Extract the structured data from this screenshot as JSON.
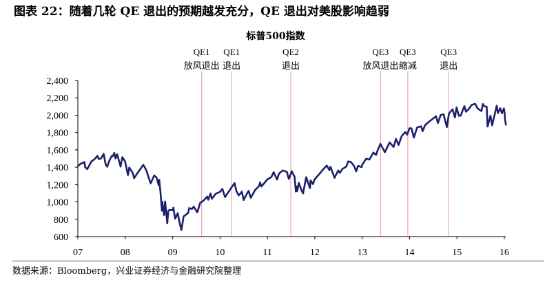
{
  "header": {
    "title": "图表 22：随着几轮 QE 退出的预期越发充分，QE 退出对美股影响趋弱"
  },
  "chart_data": {
    "type": "line",
    "title": "标普500指数",
    "xlabel": "",
    "ylabel": "",
    "xlim": [
      "2007-01-01",
      "2016-01-01"
    ],
    "ylim": [
      600,
      2400
    ],
    "x_tick_labels": [
      "07",
      "08",
      "09",
      "10",
      "11",
      "12",
      "13",
      "14",
      "15",
      "16"
    ],
    "y_ticks": [
      600,
      800,
      1000,
      1200,
      1400,
      1600,
      1800,
      2000,
      2200,
      2400
    ],
    "y_tick_labels": [
      "600",
      "800",
      "1,000",
      "1,200",
      "1,400",
      "1,600",
      "1,800",
      "2,000",
      "2,200",
      "2,400"
    ],
    "grid": false,
    "legend": "none",
    "colors": {
      "series": "#1c1f6b",
      "event_line": "#e9a6b0"
    },
    "annotations": [
      {
        "date": "2009-08-12",
        "label_top": "QE1",
        "label_bottom": "放风退出"
      },
      {
        "date": "2010-03-31",
        "label_top": "QE1",
        "label_bottom": "退出"
      },
      {
        "date": "2011-06-30",
        "label_top": "QE2",
        "label_bottom": "退出"
      },
      {
        "date": "2013-05-22",
        "label_top": "QE3",
        "label_bottom": "放风退出"
      },
      {
        "date": "2013-12-18",
        "label_top": "QE3",
        "label_bottom": "缩减"
      },
      {
        "date": "2014-10-29",
        "label_top": "QE3",
        "label_bottom": "退出"
      }
    ],
    "series": [
      {
        "points": [
          [
            "2007-01-03",
            1417
          ],
          [
            "2007-01-24",
            1440
          ],
          [
            "2007-02-20",
            1459
          ],
          [
            "2007-02-27",
            1400
          ],
          [
            "2007-03-14",
            1377
          ],
          [
            "2007-03-30",
            1421
          ],
          [
            "2007-04-16",
            1468
          ],
          [
            "2007-04-30",
            1482
          ],
          [
            "2007-05-15",
            1501
          ],
          [
            "2007-05-31",
            1531
          ],
          [
            "2007-06-12",
            1493
          ],
          [
            "2007-06-29",
            1503
          ],
          [
            "2007-07-19",
            1553
          ],
          [
            "2007-08-03",
            1433
          ],
          [
            "2007-08-15",
            1406
          ],
          [
            "2007-08-31",
            1474
          ],
          [
            "2007-09-19",
            1529
          ],
          [
            "2007-09-28",
            1527
          ],
          [
            "2007-10-09",
            1565
          ],
          [
            "2007-10-19",
            1501
          ],
          [
            "2007-10-31",
            1549
          ],
          [
            "2007-11-26",
            1407
          ],
          [
            "2007-12-10",
            1516
          ],
          [
            "2007-12-31",
            1468
          ],
          [
            "2008-01-22",
            1310
          ],
          [
            "2008-02-01",
            1396
          ],
          [
            "2008-02-29",
            1331
          ],
          [
            "2008-03-10",
            1273
          ],
          [
            "2008-03-31",
            1323
          ],
          [
            "2008-04-30",
            1386
          ],
          [
            "2008-05-19",
            1427
          ],
          [
            "2008-05-30",
            1400
          ],
          [
            "2008-06-13",
            1360
          ],
          [
            "2008-06-30",
            1280
          ],
          [
            "2008-07-15",
            1214
          ],
          [
            "2008-07-31",
            1267
          ],
          [
            "2008-08-11",
            1305
          ],
          [
            "2008-08-29",
            1283
          ],
          [
            "2008-09-15",
            1193
          ],
          [
            "2008-09-19",
            1255
          ],
          [
            "2008-09-29",
            1106
          ],
          [
            "2008-10-10",
            899
          ],
          [
            "2008-10-13",
            1003
          ],
          [
            "2008-10-27",
            848
          ],
          [
            "2008-11-04",
            1005
          ],
          [
            "2008-11-20",
            752
          ],
          [
            "2008-11-28",
            896
          ],
          [
            "2008-12-08",
            909
          ],
          [
            "2008-12-31",
            903
          ],
          [
            "2009-01-06",
            935
          ],
          [
            "2009-01-20",
            805
          ],
          [
            "2009-02-09",
            870
          ],
          [
            "2009-02-27",
            735
          ],
          [
            "2009-03-09",
            676
          ],
          [
            "2009-03-26",
            832
          ],
          [
            "2009-04-30",
            873
          ],
          [
            "2009-05-08",
            929
          ],
          [
            "2009-05-29",
            919
          ],
          [
            "2009-06-12",
            946
          ],
          [
            "2009-07-10",
            879
          ],
          [
            "2009-07-31",
            987
          ],
          [
            "2009-08-31",
            1021
          ],
          [
            "2009-09-23",
            1061
          ],
          [
            "2009-10-02",
            1025
          ],
          [
            "2009-10-19",
            1097
          ],
          [
            "2009-10-30",
            1036
          ],
          [
            "2009-11-30",
            1096
          ],
          [
            "2009-12-31",
            1115
          ],
          [
            "2010-01-19",
            1150
          ],
          [
            "2010-02-08",
            1056
          ],
          [
            "2010-03-31",
            1169
          ],
          [
            "2010-04-23",
            1217
          ],
          [
            "2010-05-06",
            1128
          ],
          [
            "2010-05-25",
            1074
          ],
          [
            "2010-06-18",
            1117
          ],
          [
            "2010-07-02",
            1022
          ],
          [
            "2010-07-30",
            1102
          ],
          [
            "2010-08-09",
            1127
          ],
          [
            "2010-08-26",
            1047
          ],
          [
            "2010-09-30",
            1141
          ],
          [
            "2010-10-29",
            1183
          ],
          [
            "2010-11-05",
            1225
          ],
          [
            "2010-11-16",
            1178
          ],
          [
            "2010-12-31",
            1258
          ],
          [
            "2011-01-31",
            1286
          ],
          [
            "2011-02-18",
            1343
          ],
          [
            "2011-03-16",
            1257
          ],
          [
            "2011-03-31",
            1326
          ],
          [
            "2011-04-29",
            1364
          ],
          [
            "2011-05-31",
            1345
          ],
          [
            "2011-06-15",
            1265
          ],
          [
            "2011-06-30",
            1321
          ],
          [
            "2011-07-07",
            1354
          ],
          [
            "2011-07-29",
            1292
          ],
          [
            "2011-08-08",
            1119
          ],
          [
            "2011-08-12",
            1179
          ],
          [
            "2011-08-19",
            1124
          ],
          [
            "2011-08-31",
            1219
          ],
          [
            "2011-09-22",
            1130
          ],
          [
            "2011-10-03",
            1099
          ],
          [
            "2011-10-27",
            1285
          ],
          [
            "2011-11-25",
            1159
          ],
          [
            "2011-11-30",
            1247
          ],
          [
            "2011-12-19",
            1206
          ],
          [
            "2011-12-30",
            1258
          ],
          [
            "2012-01-31",
            1312
          ],
          [
            "2012-02-29",
            1366
          ],
          [
            "2012-04-02",
            1419
          ],
          [
            "2012-04-23",
            1366
          ],
          [
            "2012-05-01",
            1406
          ],
          [
            "2012-06-01",
            1278
          ],
          [
            "2012-06-29",
            1362
          ],
          [
            "2012-07-12",
            1334
          ],
          [
            "2012-07-31",
            1379
          ],
          [
            "2012-08-31",
            1407
          ],
          [
            "2012-09-14",
            1466
          ],
          [
            "2012-10-05",
            1461
          ],
          [
            "2012-10-31",
            1412
          ],
          [
            "2012-11-15",
            1353
          ],
          [
            "2012-11-30",
            1416
          ],
          [
            "2012-12-28",
            1402
          ],
          [
            "2012-12-31",
            1426
          ],
          [
            "2013-01-31",
            1498
          ],
          [
            "2013-02-25",
            1488
          ],
          [
            "2013-03-28",
            1569
          ],
          [
            "2013-04-18",
            1541
          ],
          [
            "2013-04-30",
            1598
          ],
          [
            "2013-05-21",
            1669
          ],
          [
            "2013-06-24",
            1573
          ],
          [
            "2013-07-31",
            1686
          ],
          [
            "2013-08-30",
            1633
          ],
          [
            "2013-09-18",
            1725
          ],
          [
            "2013-10-08",
            1656
          ],
          [
            "2013-10-31",
            1757
          ],
          [
            "2013-11-29",
            1806
          ],
          [
            "2013-12-13",
            1775
          ],
          [
            "2013-12-31",
            1848
          ],
          [
            "2014-01-15",
            1848
          ],
          [
            "2014-02-03",
            1742
          ],
          [
            "2014-02-28",
            1859
          ],
          [
            "2014-03-31",
            1872
          ],
          [
            "2014-04-11",
            1815
          ],
          [
            "2014-04-30",
            1884
          ],
          [
            "2014-05-30",
            1924
          ],
          [
            "2014-06-30",
            1960
          ],
          [
            "2014-07-24",
            1988
          ],
          [
            "2014-08-07",
            1910
          ],
          [
            "2014-08-29",
            2003
          ],
          [
            "2014-09-19",
            2011
          ],
          [
            "2014-10-15",
            1862
          ],
          [
            "2014-10-31",
            2018
          ],
          [
            "2014-11-28",
            2068
          ],
          [
            "2014-12-16",
            1973
          ],
          [
            "2014-12-29",
            2091
          ],
          [
            "2015-01-15",
            1993
          ],
          [
            "2015-01-30",
            1995
          ],
          [
            "2015-02-27",
            2105
          ],
          [
            "2015-03-11",
            2040
          ],
          [
            "2015-03-31",
            2068
          ],
          [
            "2015-04-24",
            2117
          ],
          [
            "2015-05-21",
            2131
          ],
          [
            "2015-06-08",
            2080
          ],
          [
            "2015-06-29",
            2057
          ],
          [
            "2015-07-08",
            2047
          ],
          [
            "2015-07-20",
            2128
          ],
          [
            "2015-07-31",
            2104
          ],
          [
            "2015-08-18",
            2097
          ],
          [
            "2015-08-25",
            1868
          ],
          [
            "2015-09-16",
            1995
          ],
          [
            "2015-09-29",
            1884
          ],
          [
            "2015-10-30",
            2079
          ],
          [
            "2015-11-03",
            2109
          ],
          [
            "2015-11-13",
            2023
          ],
          [
            "2015-11-30",
            2080
          ],
          [
            "2015-12-14",
            2022
          ],
          [
            "2015-12-29",
            2078
          ],
          [
            "2016-01-04",
            2013
          ],
          [
            "2016-01-07",
            1943
          ],
          [
            "2016-01-13",
            1890
          ]
        ]
      }
    ]
  },
  "footer": {
    "source": "数据来源：Bloomberg，兴业证券经济与金融研究院整理"
  }
}
